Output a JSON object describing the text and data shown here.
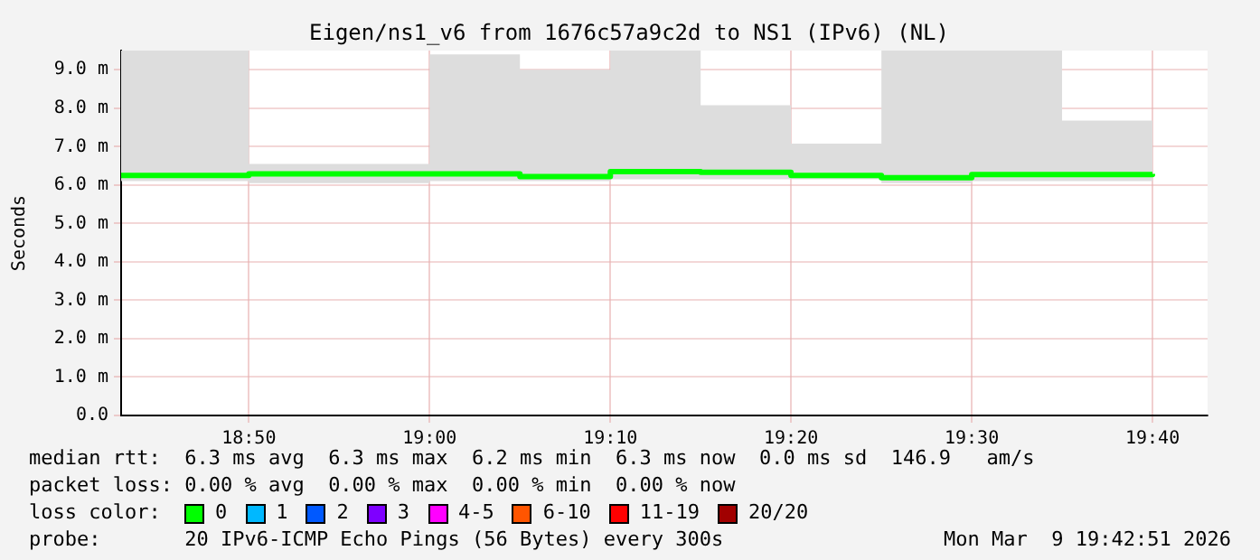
{
  "chart_data": {
    "type": "step",
    "title": "Eigen/ns1_v6 from 1676c57a9c2d to NS1 (IPv6) (NL)",
    "ylabel": "Seconds",
    "x": [
      18.7155,
      18.75,
      18.8333,
      18.9167,
      19,
      19.0833,
      19.1667,
      19.25,
      19.3333,
      19.4167,
      19.5,
      19.5833,
      19.6667
    ],
    "series": [
      {
        "color": "#00ff00",
        "values": [
          6.25,
          6.25,
          6.29,
          6.29,
          6.29,
          6.22,
          6.35,
          6.33,
          6.25,
          6.19,
          6.27,
          6.27,
          6.29
        ],
        "lower": [
          6.1,
          6.1,
          6.05,
          6.05,
          6.1,
          6.1,
          6.15,
          6.15,
          6.15,
          6.05,
          6.1,
          6.1,
          6.05
        ],
        "upper": [
          9.5,
          9.5,
          6.55,
          6.55,
          9.4,
          9.0,
          9.5,
          8.08,
          7.08,
          9.5,
          9.5,
          7.68,
          9.5
        ]
      }
    ],
    "xlim": [
      18.7155,
      19.7175
    ],
    "xticks": [
      {
        "value": 18.8333,
        "label": "18:50"
      },
      {
        "value": 19,
        "label": "19:00"
      },
      {
        "value": 19.1667,
        "label": "19:10"
      },
      {
        "value": 19.3333,
        "label": "19:20"
      },
      {
        "value": 19.5,
        "label": "19:30"
      },
      {
        "value": 19.6667,
        "label": "19:40"
      }
    ],
    "ylim": [
      0,
      9.5
    ],
    "yticks": [
      {
        "value": 0,
        "label": "0.0"
      },
      {
        "value": 1,
        "label": "1.0 m"
      },
      {
        "value": 2,
        "label": "2.0 m"
      },
      {
        "value": 3,
        "label": "3.0 m"
      },
      {
        "value": 4,
        "label": "4.0 m"
      },
      {
        "value": 5,
        "label": "5.0 m"
      },
      {
        "value": 6,
        "label": "6.0 m"
      },
      {
        "value": 7,
        "label": "7.0 m"
      },
      {
        "value": 8,
        "label": "8.0 m"
      },
      {
        "value": 9,
        "label": "9.0 m"
      }
    ],
    "grid": true,
    "legend": false,
    "annotations": [
      "median rtt:  6.3 ms avg  6.3 ms max  6.2 ms min  6.3 ms now  0.0 ms sd  146.9   am/s",
      "packet loss: 0.00 % avg  0.00 % max  0.00 % min  0.00 % now",
      "loss color:",
      "0",
      "1",
      "2",
      "3",
      "4-5",
      "6-10",
      "11-19",
      "20/20",
      "probe:       20 IPv6-ICMP Echo Pings (56 Bytes) every 300s",
      "Mon Mar  9 19:42:51 2026"
    ]
  }
}
